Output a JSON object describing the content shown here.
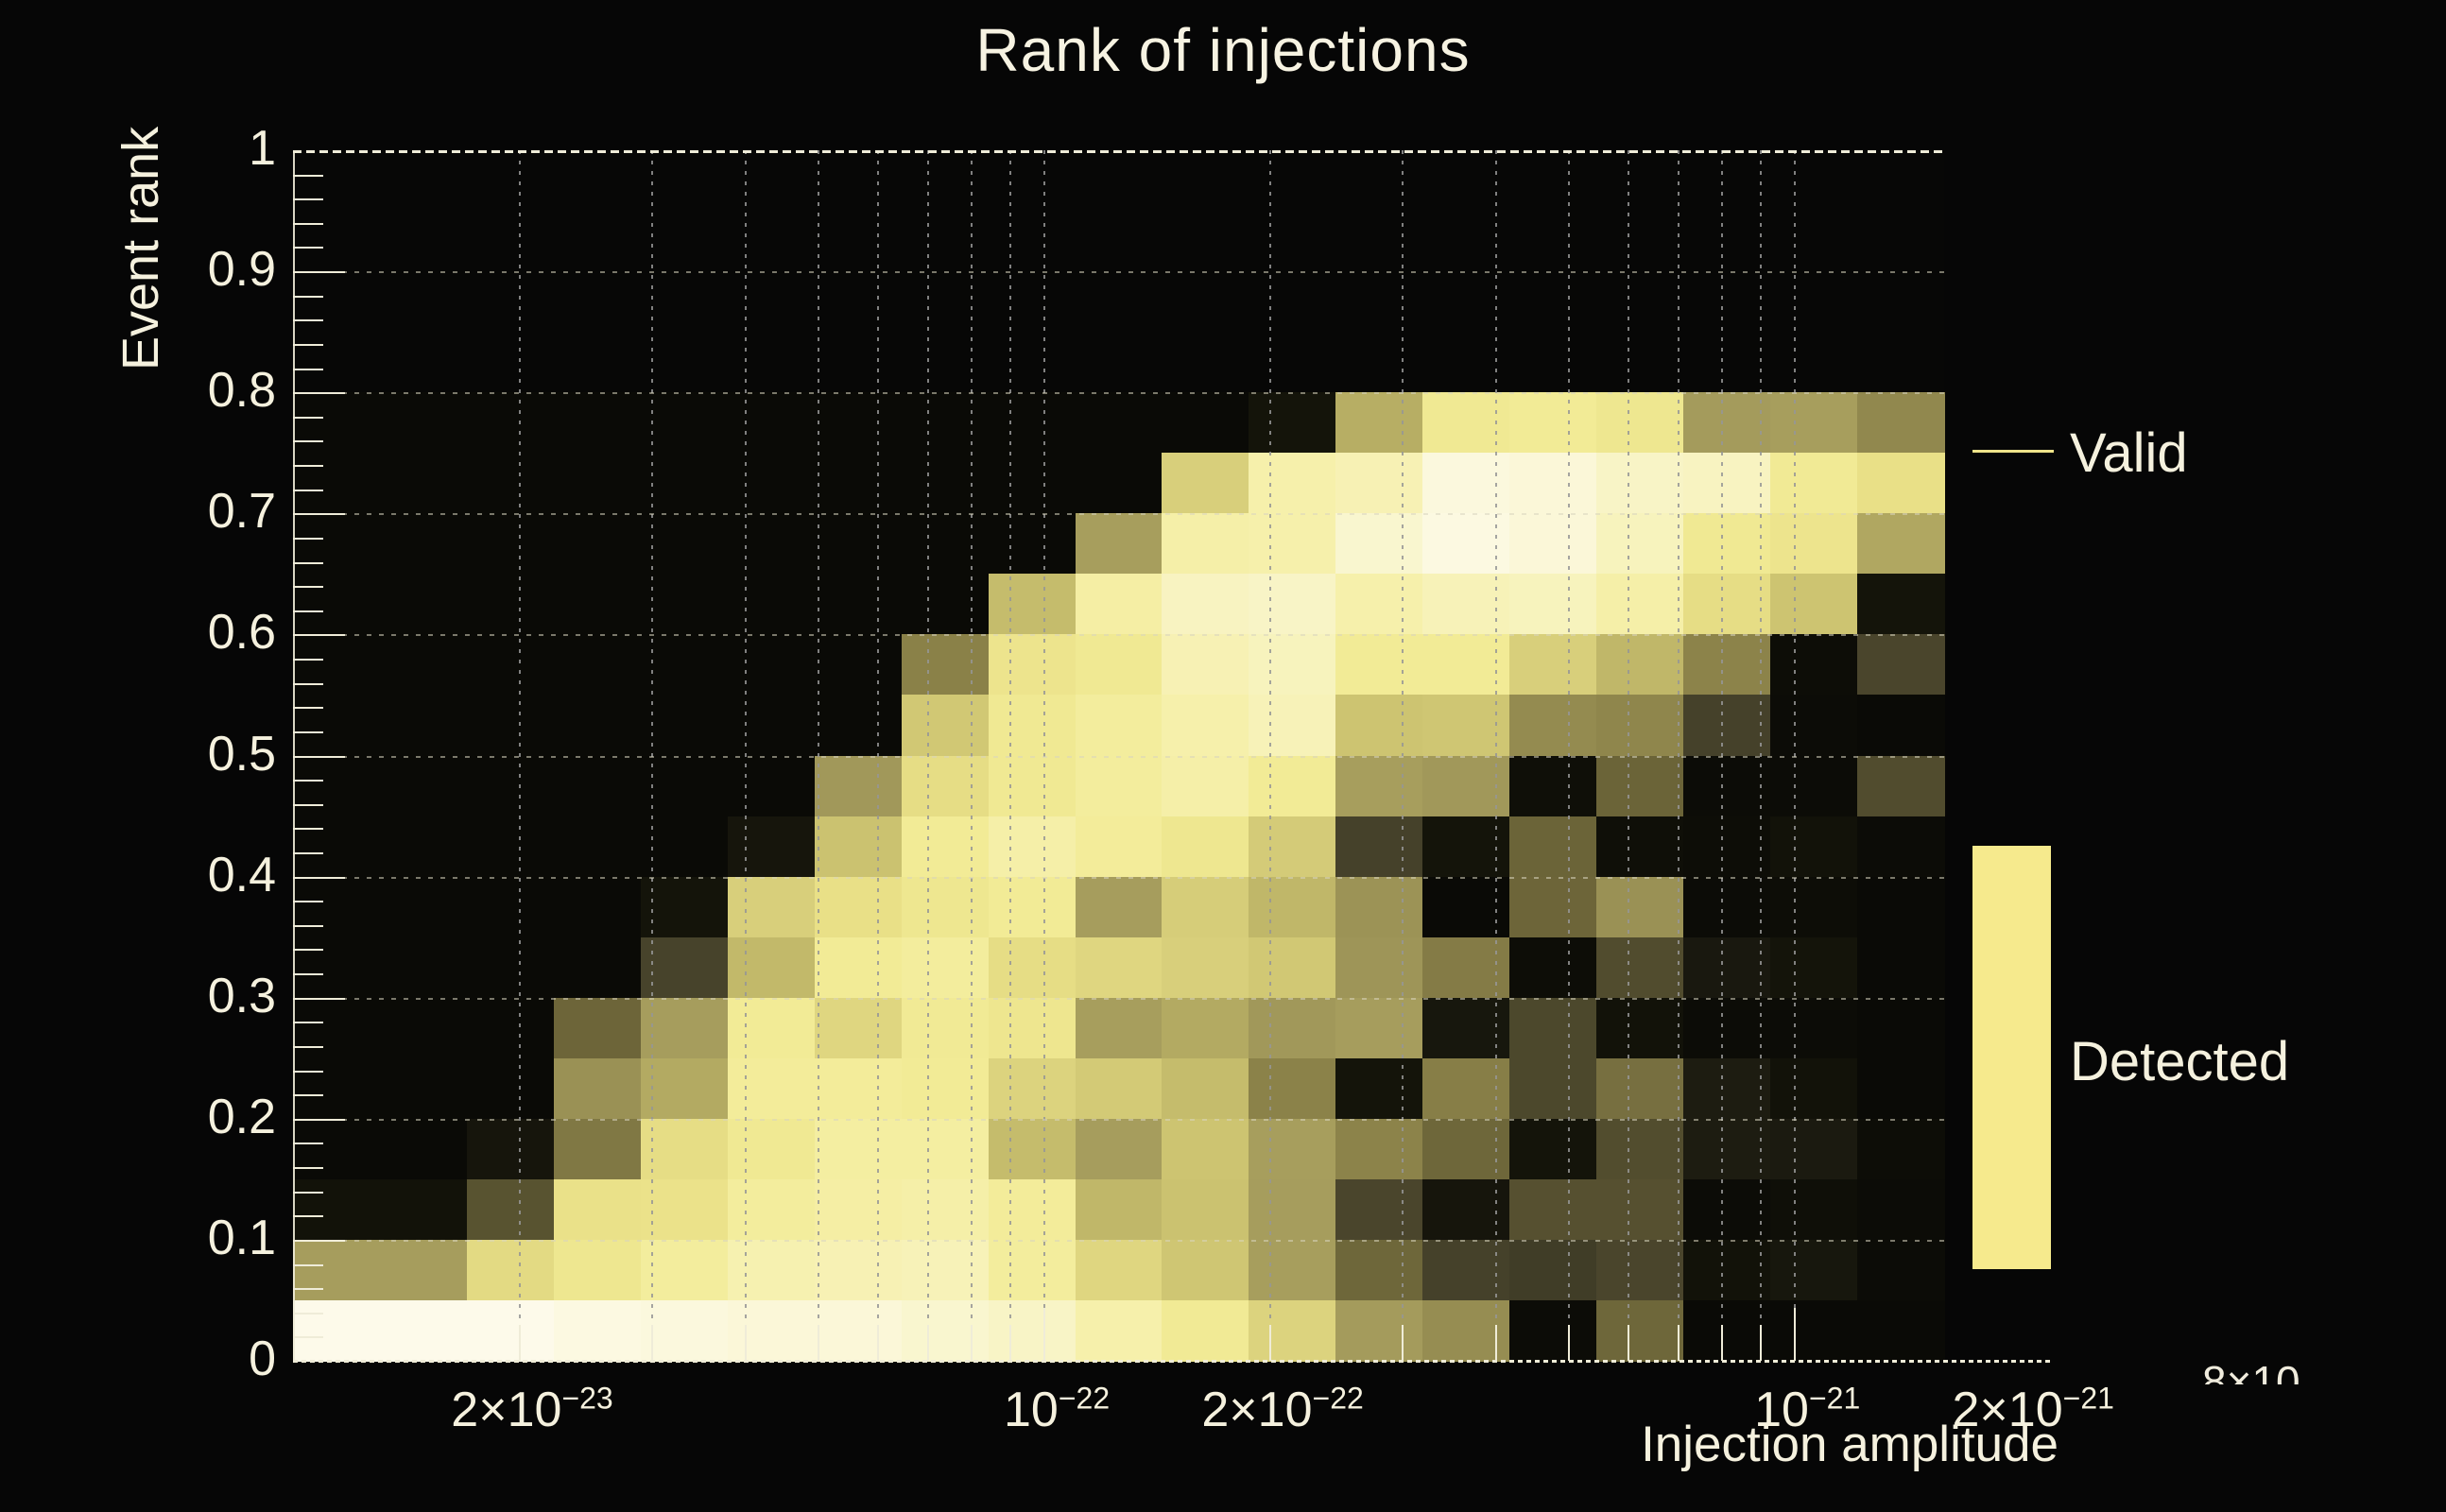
{
  "title": "Rank of injections",
  "colors": {
    "background": "#060606",
    "text_cream": "#f5f1de",
    "axis_cream": "#efecd8",
    "grid_gray": "#969696",
    "legend_line": "#efe48a",
    "legend_box": "#f6ea8d"
  },
  "legend": {
    "valid_label": "Valid",
    "detected_label": "Detected"
  },
  "artifact_label": "8×10",
  "chart_data": {
    "type": "heatmap",
    "title": "Rank of injections",
    "xlabel": "Injection amplitude",
    "ylabel": "Event rank",
    "x_scale": "log",
    "x_range_log10": [
      -23.0,
      -20.8
    ],
    "y_range": [
      0,
      1
    ],
    "y_data_max": 0.8,
    "grid": true,
    "legend_position": "right",
    "n_cols": 19,
    "n_rows": 16,
    "x_bin_log10_start": -23.0,
    "x_bin_log10_width": 0.11579,
    "y_bin_height": 0.05,
    "rows_order": "top_to_bottom_rank_0.80_to_0.00",
    "values": [
      [
        0,
        0,
        0,
        0,
        0,
        0,
        0,
        0,
        0,
        0,
        0,
        0.06,
        0.71,
        0.89,
        0.9,
        0.88,
        0.65,
        0.66,
        0.58
      ],
      [
        0,
        0,
        0,
        0,
        0,
        0,
        0,
        0,
        0,
        0,
        0.79,
        0.93,
        0.94,
        0.985,
        0.98,
        0.96,
        0.955,
        0.895,
        0.85
      ],
      [
        0,
        0,
        0,
        0,
        0,
        0,
        0,
        0,
        0,
        0.66,
        0.925,
        0.93,
        0.97,
        0.99,
        0.98,
        0.95,
        0.89,
        0.87,
        0.69
      ],
      [
        0,
        0,
        0,
        0,
        0,
        0,
        0,
        0,
        0.74,
        0.92,
        0.955,
        0.96,
        0.93,
        0.945,
        0.95,
        0.925,
        0.84,
        0.76,
        0.06
      ],
      [
        0,
        0,
        0,
        0,
        0,
        0,
        0,
        0.55,
        0.87,
        0.89,
        0.94,
        0.95,
        0.9,
        0.9,
        0.79,
        0.73,
        0.56,
        0.02,
        0.32
      ],
      [
        0,
        0,
        0,
        0,
        0,
        0,
        0,
        0.77,
        0.89,
        0.91,
        0.93,
        0.945,
        0.76,
        0.765,
        0.59,
        0.57,
        0.3,
        0.01,
        0
      ],
      [
        0,
        0,
        0,
        0,
        0,
        0,
        0.64,
        0.84,
        0.89,
        0.91,
        0.925,
        0.9,
        0.66,
        0.64,
        0.03,
        0.45,
        0.01,
        0.01,
        0.35
      ],
      [
        0,
        0,
        0,
        0,
        0,
        0.07,
        0.755,
        0.9,
        0.925,
        0.905,
        0.88,
        0.78,
        0.3,
        0.06,
        0.45,
        0.03,
        0.02,
        0.05,
        0.01
      ],
      [
        0,
        0,
        0,
        0,
        0.06,
        0.79,
        0.85,
        0.88,
        0.9,
        0.655,
        0.785,
        0.73,
        0.62,
        0,
        0.455,
        0.615,
        0.01,
        0.02,
        0
      ],
      [
        0,
        0,
        0,
        0,
        0.31,
        0.735,
        0.9,
        0.91,
        0.84,
        0.81,
        0.79,
        0.77,
        0.63,
        0.53,
        0.02,
        0.35,
        0.09,
        0.06,
        0
      ],
      [
        0,
        0,
        0,
        0.455,
        0.655,
        0.9,
        0.81,
        0.895,
        0.875,
        0.66,
        0.7,
        0.64,
        0.655,
        0.08,
        0.33,
        0.05,
        0.01,
        0.01,
        0
      ],
      [
        0,
        0,
        0,
        0.615,
        0.7,
        0.905,
        0.905,
        0.9,
        0.8,
        0.775,
        0.74,
        0.555,
        0.06,
        0.54,
        0.33,
        0.49,
        0.11,
        0.05,
        0
      ],
      [
        0,
        0,
        0.07,
        0.52,
        0.84,
        0.89,
        0.915,
        0.915,
        0.74,
        0.655,
        0.76,
        0.66,
        0.56,
        0.46,
        0.06,
        0.355,
        0.11,
        0.1,
        0.02
      ],
      [
        0.05,
        0.05,
        0.38,
        0.855,
        0.86,
        0.91,
        0.92,
        0.925,
        0.905,
        0.73,
        0.755,
        0.655,
        0.32,
        0.07,
        0.37,
        0.37,
        0.01,
        0.03,
        0.01
      ],
      [
        0.655,
        0.655,
        0.825,
        0.88,
        0.91,
        0.935,
        0.94,
        0.945,
        0.91,
        0.81,
        0.765,
        0.66,
        0.46,
        0.3,
        0.28,
        0.32,
        0.05,
        0.08,
        0.01
      ],
      [
        1,
        1,
        1,
        0.99,
        0.985,
        0.98,
        0.98,
        0.97,
        0.96,
        0.93,
        0.895,
        0.8,
        0.65,
        0.6,
        0.01,
        0.46,
        0,
        0,
        0
      ]
    ],
    "palette": [
      [
        0.0,
        "#0a0a06"
      ],
      [
        0.05,
        "#121209"
      ],
      [
        0.1,
        "#1b1a10"
      ],
      [
        0.2,
        "#2e2b1b"
      ],
      [
        0.3,
        "#45412a"
      ],
      [
        0.4,
        "#5d5732"
      ],
      [
        0.45,
        "#6b6438"
      ],
      [
        0.5,
        "#7a7242"
      ],
      [
        0.55,
        "#8a8148"
      ],
      [
        0.6,
        "#968d52"
      ],
      [
        0.65,
        "#a49b5c"
      ],
      [
        0.7,
        "#b3aa62"
      ],
      [
        0.75,
        "#c9c06e"
      ],
      [
        0.8,
        "#dcd37e"
      ],
      [
        0.85,
        "#e9e087"
      ],
      [
        0.9,
        "#f2eb96"
      ],
      [
        0.93,
        "#f6f0ab"
      ],
      [
        0.96,
        "#f8f4c6"
      ],
      [
        1.0,
        "#fdfaea"
      ]
    ],
    "x_ticks_major": [
      {
        "m": "2×10",
        "e": "−23",
        "log10": -22.699
      },
      {
        "m": "10",
        "e": "−22",
        "log10": -22.0
      },
      {
        "m": "2×10",
        "e": "−22",
        "log10": -21.699
      },
      {
        "m": "10",
        "e": "−21",
        "log10": -21.0
      },
      {
        "m": "2×10",
        "e": "−21",
        "log10": -20.699
      }
    ],
    "y_ticks": [
      {
        "v": 1.0,
        "label": "1"
      },
      {
        "v": 0.9,
        "label": "0.9"
      },
      {
        "v": 0.8,
        "label": "0.8"
      },
      {
        "v": 0.7,
        "label": "0.7"
      },
      {
        "v": 0.6,
        "label": "0.6"
      },
      {
        "v": 0.5,
        "label": "0.5"
      },
      {
        "v": 0.4,
        "label": "0.4"
      },
      {
        "v": 0.3,
        "label": "0.3"
      },
      {
        "v": 0.2,
        "label": "0.2"
      },
      {
        "v": 0.1,
        "label": "0.1"
      },
      {
        "v": 0.0,
        "label": "0"
      }
    ],
    "series_legend": [
      {
        "label": "Valid",
        "type": "line",
        "color": "#efe48a"
      },
      {
        "label": "Detected",
        "type": "box",
        "color": "#f6ea8d"
      }
    ]
  }
}
